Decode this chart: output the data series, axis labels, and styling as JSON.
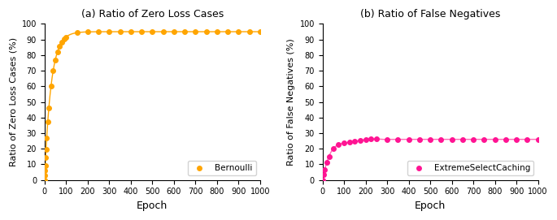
{
  "chart1": {
    "title": "(a) Ratio of Zero Loss Cases",
    "xlabel": "Epoch",
    "ylabel": "Ratio of Zero Loss Cases (%)",
    "legend_label": "Bernoulli",
    "line_color": "#FFA500",
    "marker_color": "#FFA500",
    "ylim": [
      0,
      100
    ],
    "xlim": [
      0,
      1000
    ],
    "yticks": [
      0,
      10,
      20,
      30,
      40,
      50,
      60,
      70,
      80,
      90,
      100
    ],
    "xticks": [
      0,
      100,
      200,
      300,
      400,
      500,
      600,
      700,
      800,
      900,
      1000
    ]
  },
  "chart2": {
    "title": "(b) Ratio of False Negatives",
    "xlabel": "Epoch",
    "ylabel": "Ratio of False Negatives (%)",
    "legend_label": "ExtremeSelectCaching",
    "line_color": "#FF69B4",
    "marker_color": "#FF1493",
    "ylim": [
      0,
      100
    ],
    "xlim": [
      0,
      1000
    ],
    "yticks": [
      0,
      10,
      20,
      30,
      40,
      50,
      60,
      70,
      80,
      90,
      100
    ],
    "xticks": [
      0,
      100,
      200,
      300,
      400,
      500,
      600,
      700,
      800,
      900,
      1000
    ]
  }
}
